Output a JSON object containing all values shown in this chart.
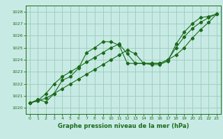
{
  "title": "Graphe pression niveau de la mer (hPa)",
  "bg_color": "#c8eae4",
  "grid_color": "#99ccbb",
  "line_color": "#1a6b1a",
  "xlim": [
    -0.5,
    23.5
  ],
  "ylim": [
    1019.5,
    1028.5
  ],
  "yticks": [
    1020,
    1021,
    1022,
    1023,
    1024,
    1025,
    1026,
    1027,
    1028
  ],
  "xticks": [
    0,
    1,
    2,
    3,
    4,
    5,
    6,
    7,
    8,
    9,
    10,
    11,
    12,
    13,
    14,
    15,
    16,
    17,
    18,
    19,
    20,
    21,
    22,
    23
  ],
  "line1_x": [
    0,
    1,
    2,
    3,
    4,
    5,
    6,
    7,
    8,
    9,
    10,
    11,
    12,
    13,
    14,
    15,
    16,
    17,
    18,
    19,
    20,
    21,
    22,
    23
  ],
  "line1_y": [
    1020.4,
    1020.7,
    1020.5,
    1021.2,
    1022.3,
    1022.6,
    1023.3,
    1024.6,
    1025.0,
    1025.5,
    1025.5,
    1025.2,
    1023.7,
    1023.7,
    1023.7,
    1023.6,
    1023.6,
    1023.9,
    1025.3,
    1026.3,
    1027.0,
    1027.5,
    1027.6,
    1027.8
  ],
  "line2_x": [
    0,
    1,
    2,
    3,
    4,
    5,
    6,
    7,
    8,
    9,
    10,
    11,
    12,
    13,
    14,
    15,
    16,
    17,
    18,
    19,
    20,
    21,
    22,
    23
  ],
  "line2_y": [
    1020.4,
    1020.6,
    1021.2,
    1022.0,
    1022.6,
    1023.0,
    1023.4,
    1023.8,
    1024.2,
    1024.6,
    1025.0,
    1025.3,
    1024.5,
    1023.7,
    1023.7,
    1023.7,
    1023.7,
    1024.0,
    1025.0,
    1025.9,
    1026.6,
    1027.1,
    1027.5,
    1027.8
  ],
  "line3_x": [
    0,
    2,
    3,
    4,
    5,
    6,
    7,
    8,
    9,
    10,
    11,
    12,
    13,
    14,
    15,
    16,
    17,
    18,
    19,
    20,
    21,
    22,
    23
  ],
  "line3_y": [
    1020.4,
    1020.8,
    1021.2,
    1021.6,
    1022.0,
    1022.4,
    1022.8,
    1023.2,
    1023.6,
    1024.0,
    1024.4,
    1024.8,
    1024.5,
    1023.7,
    1023.7,
    1023.7,
    1024.0,
    1024.4,
    1025.0,
    1025.8,
    1026.5,
    1027.1,
    1027.8
  ]
}
